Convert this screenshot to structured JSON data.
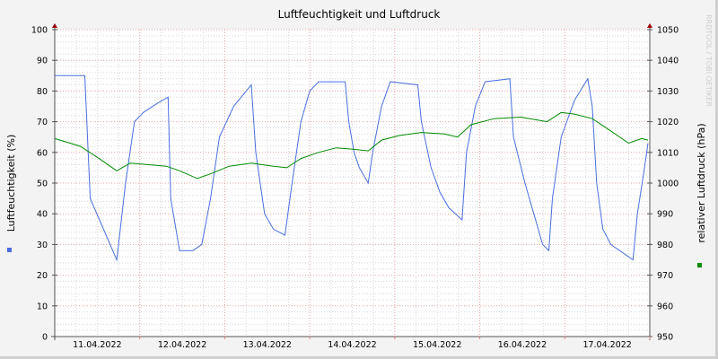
{
  "chart_data": {
    "type": "line",
    "title": "Luftfeuchtigkeit und Luftdruck",
    "ylabel_left": "Luftfeuchtigkeit (%)",
    "ylabel_right": "relativer Luftdruck (hPa)",
    "watermark": "RRDTOOL / TOBI OETIKER",
    "xlim": [
      "2022-04-11 00:00",
      "2022-04-18 00:00"
    ],
    "ylim_left": [
      0,
      100
    ],
    "ylim_right": [
      950,
      1050
    ],
    "yticks_left": [
      0,
      10,
      20,
      30,
      40,
      50,
      60,
      70,
      80,
      90,
      100
    ],
    "yticks_right": [
      950,
      960,
      970,
      980,
      990,
      1000,
      1010,
      1020,
      1030,
      1040,
      1050
    ],
    "xtick_labels": [
      "11.04.2022",
      "12.04.2022",
      "13.04.2022",
      "14.04.2022",
      "15.04.2022",
      "16.04.2022",
      "17.04.2022"
    ],
    "grid": true,
    "legend": "side markers",
    "series": [
      {
        "axis": "left",
        "color": "#4a6ee0",
        "points": [
          [
            "2022-04-11 00:00",
            85
          ],
          [
            "2022-04-11 08:30",
            85
          ],
          [
            "2022-04-11 10:00",
            45
          ],
          [
            "2022-04-11 13:45",
            35
          ],
          [
            "2022-04-11 17:30",
            25
          ],
          [
            "2022-04-11 20:00",
            50
          ],
          [
            "2022-04-11 22:30",
            70
          ],
          [
            "2022-04-12 01:00",
            73
          ],
          [
            "2022-04-12 05:00",
            76
          ],
          [
            "2022-04-12 08:00",
            78
          ],
          [
            "2022-04-12 08:45",
            45
          ],
          [
            "2022-04-12 11:15",
            28
          ],
          [
            "2022-04-12 15:00",
            28
          ],
          [
            "2022-04-12 17:30",
            30
          ],
          [
            "2022-04-12 20:00",
            45
          ],
          [
            "2022-04-12 22:30",
            65
          ],
          [
            "2022-04-13 02:30",
            75
          ],
          [
            "2022-04-13 07:30",
            82
          ],
          [
            "2022-04-13 08:45",
            60
          ],
          [
            "2022-04-13 11:15",
            40
          ],
          [
            "2022-04-13 13:45",
            35
          ],
          [
            "2022-04-13 17:00",
            33
          ],
          [
            "2022-04-13 19:00",
            50
          ],
          [
            "2022-04-13 21:30",
            70
          ],
          [
            "2022-04-14 00:00",
            80
          ],
          [
            "2022-04-14 02:30",
            83
          ],
          [
            "2022-04-14 10:00",
            83
          ],
          [
            "2022-04-14 11:00",
            70
          ],
          [
            "2022-04-14 12:30",
            60
          ],
          [
            "2022-04-14 14:00",
            55
          ],
          [
            "2022-04-14 16:30",
            50
          ],
          [
            "2022-04-14 17:45",
            60
          ],
          [
            "2022-04-14 20:15",
            75
          ],
          [
            "2022-04-14 22:45",
            83
          ],
          [
            "2022-04-15 06:30",
            82
          ],
          [
            "2022-04-15 07:30",
            70
          ],
          [
            "2022-04-15 10:15",
            55
          ],
          [
            "2022-04-15 12:45",
            47
          ],
          [
            "2022-04-15 15:15",
            42
          ],
          [
            "2022-04-15 19:00",
            38
          ],
          [
            "2022-04-15 20:15",
            60
          ],
          [
            "2022-04-15 22:45",
            75
          ],
          [
            "2022-04-16 01:30",
            83
          ],
          [
            "2022-04-16 08:30",
            84
          ],
          [
            "2022-04-16 09:30",
            65
          ],
          [
            "2022-04-16 12:45",
            50
          ],
          [
            "2022-04-16 15:15",
            40
          ],
          [
            "2022-04-16 17:45",
            30
          ],
          [
            "2022-04-16 19:30",
            28
          ],
          [
            "2022-04-16 20:30",
            45
          ],
          [
            "2022-04-16 23:00",
            65
          ],
          [
            "2022-04-17 02:45",
            77
          ],
          [
            "2022-04-17 06:30",
            84
          ],
          [
            "2022-04-17 07:45",
            75
          ],
          [
            "2022-04-17 09:00",
            50
          ],
          [
            "2022-04-17 10:45",
            35
          ],
          [
            "2022-04-17 13:00",
            30
          ],
          [
            "2022-04-17 16:45",
            27
          ],
          [
            "2022-04-17 19:15",
            25
          ],
          [
            "2022-04-17 20:30",
            40
          ],
          [
            "2022-04-17 22:30",
            55
          ],
          [
            "2022-04-17 23:30",
            63
          ]
        ]
      },
      {
        "axis": "right",
        "color": "#008a00",
        "points": [
          [
            "2022-04-11 00:00",
            1014.5
          ],
          [
            "2022-04-11 07:15",
            1012
          ],
          [
            "2022-04-11 12:30",
            1008
          ],
          [
            "2022-04-11 17:30",
            1004
          ],
          [
            "2022-04-11 21:15",
            1006.5
          ],
          [
            "2022-04-12 02:30",
            1006
          ],
          [
            "2022-04-12 07:30",
            1005.5
          ],
          [
            "2022-04-12 11:15",
            1004
          ],
          [
            "2022-04-12 16:15",
            1001.5
          ],
          [
            "2022-04-12 20:00",
            1003
          ],
          [
            "2022-04-13 01:15",
            1005.5
          ],
          [
            "2022-04-13 07:30",
            1006.5
          ],
          [
            "2022-04-13 13:45",
            1005.5
          ],
          [
            "2022-04-13 17:30",
            1005
          ],
          [
            "2022-04-13 21:30",
            1008
          ],
          [
            "2022-04-14 02:30",
            1010
          ],
          [
            "2022-04-14 07:30",
            1011.5
          ],
          [
            "2022-04-14 12:30",
            1011
          ],
          [
            "2022-04-14 16:30",
            1010.5
          ],
          [
            "2022-04-14 20:15",
            1014
          ],
          [
            "2022-04-15 01:15",
            1015.5
          ],
          [
            "2022-04-15 07:30",
            1016.5
          ],
          [
            "2022-04-15 14:00",
            1016
          ],
          [
            "2022-04-15 17:45",
            1015
          ],
          [
            "2022-04-15 21:30",
            1019
          ],
          [
            "2022-04-16 04:00",
            1021
          ],
          [
            "2022-04-16 11:30",
            1021.5
          ],
          [
            "2022-04-16 16:30",
            1020.5
          ],
          [
            "2022-04-16 19:00",
            1020
          ],
          [
            "2022-04-16 23:00",
            1023
          ],
          [
            "2022-04-17 02:45",
            1022.5
          ],
          [
            "2022-04-17 07:45",
            1021
          ],
          [
            "2022-04-17 13:00",
            1017
          ],
          [
            "2022-04-17 18:00",
            1013
          ],
          [
            "2022-04-17 21:45",
            1014.5
          ],
          [
            "2022-04-17 23:30",
            1014
          ]
        ]
      }
    ]
  }
}
